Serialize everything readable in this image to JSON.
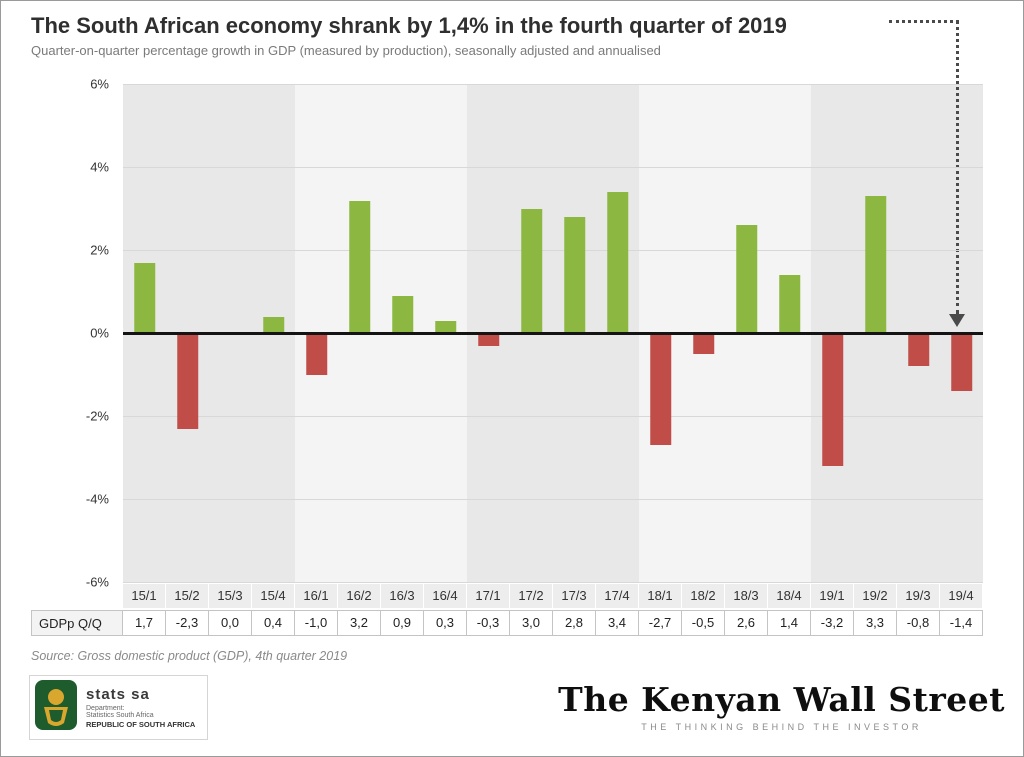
{
  "header": {
    "title": "The South African economy shrank by 1,4% in the fourth quarter of 2019",
    "subtitle": "Quarter-on-quarter percentage growth in GDP (measured by production), seasonally adjusted and annualised"
  },
  "chart_data": {
    "type": "bar",
    "title": "The South African economy shrank by 1,4% in the fourth quarter of 2019",
    "subtitle": "Quarter-on-quarter percentage growth in GDP (measured by production), seasonally adjusted and annualised",
    "categories": [
      "15/1",
      "15/2",
      "15/3",
      "15/4",
      "16/1",
      "16/2",
      "16/3",
      "16/4",
      "17/1",
      "17/2",
      "17/3",
      "17/4",
      "18/1",
      "18/2",
      "18/3",
      "18/4",
      "19/1",
      "19/2",
      "19/3",
      "19/4"
    ],
    "values": [
      1.7,
      -2.3,
      0.0,
      0.4,
      -1.0,
      3.2,
      0.9,
      0.3,
      -0.3,
      3.0,
      2.8,
      3.4,
      -2.7,
      -0.5,
      2.6,
      1.4,
      -3.2,
      3.3,
      -0.8,
      -1.4
    ],
    "series_label": "GDPp Q/Q",
    "ylim": [
      -6,
      6
    ],
    "ytick_values": [
      6,
      4,
      2,
      0,
      -2,
      -4,
      -6
    ],
    "ytick_labels": [
      "6%",
      "4%",
      "2%",
      "0%",
      "-2%",
      "-4%",
      "-6%"
    ],
    "positive_color": "#8cb842",
    "negative_color": "#c04d48",
    "band_colors": [
      "#e8e8e8",
      "#f4f4f4"
    ],
    "grid": true,
    "annotation": "dotted arrow from title pointing down to the 19/4 bar"
  },
  "table": {
    "row_label": "GDPp Q/Q",
    "values": [
      "1,7",
      "-2,3",
      "0,0",
      "0,4",
      "-1,0",
      "3,2",
      "0,9",
      "0,3",
      "-0,3",
      "3,0",
      "2,8",
      "3,4",
      "-2,7",
      "-0,5",
      "2,6",
      "1,4",
      "-3,2",
      "3,3",
      "-0,8",
      "-1,4"
    ]
  },
  "source": {
    "text": "Source: Gross domestic product (GDP), 4th quarter 2019"
  },
  "footer": {
    "statssa": {
      "name": "stats sa",
      "dept1": "Department:",
      "dept2": "Statistics South Africa",
      "country": "REPUBLIC OF SOUTH AFRICA"
    },
    "kws": {
      "title": "The Kenyan Wall Street",
      "tagline": "THE THINKING BEHIND THE INVESTOR"
    }
  }
}
